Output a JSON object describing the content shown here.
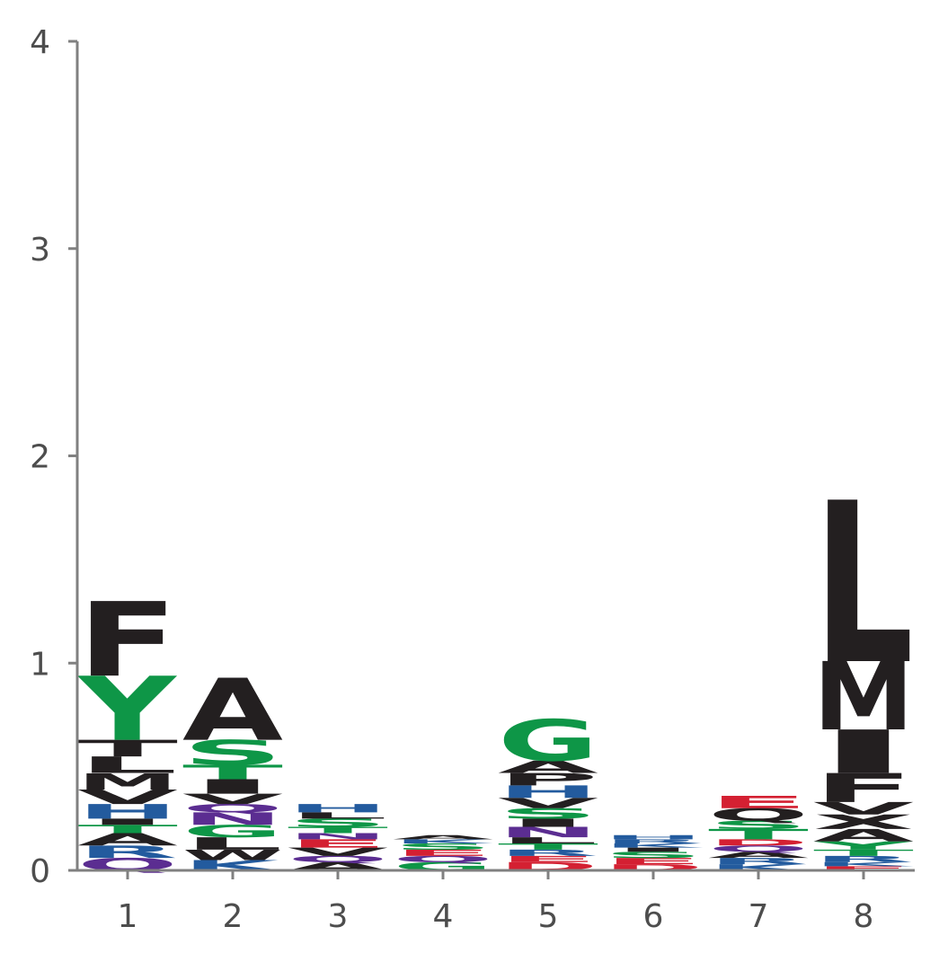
{
  "chart_data": {
    "type": "sequence-logo",
    "title": "",
    "xlabel": "",
    "ylabel": "",
    "ylim": [
      0,
      4
    ],
    "yticks": [
      0,
      1,
      2,
      3,
      4
    ],
    "colors": {
      "black": "#231f20",
      "green": "#0e9647",
      "blue": "#235b9e",
      "purple": "#5b2d91",
      "red": "#d42032"
    },
    "positions": [
      {
        "label": "1",
        "letters": [
          {
            "char": "Q",
            "height": 0.06,
            "color": "purple"
          },
          {
            "char": "R",
            "height": 0.06,
            "color": "blue"
          },
          {
            "char": "A",
            "height": 0.06,
            "color": "black"
          },
          {
            "char": "T",
            "height": 0.04,
            "color": "green"
          },
          {
            "char": "I",
            "height": 0.03,
            "color": "black"
          },
          {
            "char": "H",
            "height": 0.07,
            "color": "blue"
          },
          {
            "char": "V",
            "height": 0.07,
            "color": "black"
          },
          {
            "char": "M",
            "height": 0.08,
            "color": "black"
          },
          {
            "char": "L",
            "height": 0.08,
            "color": "black"
          },
          {
            "char": "T",
            "height": 0.08,
            "color": "black"
          },
          {
            "char": "Y",
            "height": 0.31,
            "color": "green"
          },
          {
            "char": "F",
            "height": 0.36,
            "color": "black"
          }
        ]
      },
      {
        "label": "2",
        "letters": [
          {
            "char": "K",
            "height": 0.05,
            "color": "blue"
          },
          {
            "char": "W",
            "height": 0.05,
            "color": "black"
          },
          {
            "char": "L",
            "height": 0.06,
            "color": "black"
          },
          {
            "char": "G",
            "height": 0.06,
            "color": "green"
          },
          {
            "char": "N",
            "height": 0.06,
            "color": "purple"
          },
          {
            "char": "Q",
            "height": 0.04,
            "color": "purple"
          },
          {
            "char": "V",
            "height": 0.05,
            "color": "black"
          },
          {
            "char": "I",
            "height": 0.07,
            "color": "black"
          },
          {
            "char": "T",
            "height": 0.07,
            "color": "green"
          },
          {
            "char": "S",
            "height": 0.12,
            "color": "green"
          },
          {
            "char": "A",
            "height": 0.3,
            "color": "black"
          }
        ]
      },
      {
        "label": "3",
        "letters": [
          {
            "char": "A",
            "height": 0.04,
            "color": "black"
          },
          {
            "char": "Q",
            "height": 0.03,
            "color": "purple"
          },
          {
            "char": "V",
            "height": 0.04,
            "color": "black"
          },
          {
            "char": "E",
            "height": 0.04,
            "color": "red"
          },
          {
            "char": "N",
            "height": 0.03,
            "color": "purple"
          },
          {
            "char": "T",
            "height": 0.03,
            "color": "green"
          },
          {
            "char": "S",
            "height": 0.04,
            "color": "green"
          },
          {
            "char": "L",
            "height": 0.03,
            "color": "black"
          },
          {
            "char": "H",
            "height": 0.04,
            "color": "blue"
          }
        ]
      },
      {
        "label": "4",
        "letters": [
          {
            "char": "G",
            "height": 0.04,
            "color": "green"
          },
          {
            "char": "Q",
            "height": 0.03,
            "color": "purple"
          },
          {
            "char": "E",
            "height": 0.03,
            "color": "red"
          },
          {
            "char": "S",
            "height": 0.03,
            "color": "green"
          },
          {
            "char": "K",
            "height": 0.02,
            "color": "blue"
          },
          {
            "char": "A",
            "height": 0.02,
            "color": "black"
          }
        ]
      },
      {
        "label": "5",
        "letters": [
          {
            "char": "D",
            "height": 0.04,
            "color": "red"
          },
          {
            "char": "E",
            "height": 0.03,
            "color": "red"
          },
          {
            "char": "R",
            "height": 0.03,
            "color": "blue"
          },
          {
            "char": "T",
            "height": 0.03,
            "color": "green"
          },
          {
            "char": "L",
            "height": 0.03,
            "color": "black"
          },
          {
            "char": "N",
            "height": 0.05,
            "color": "purple"
          },
          {
            "char": "I",
            "height": 0.04,
            "color": "black"
          },
          {
            "char": "S",
            "height": 0.05,
            "color": "green"
          },
          {
            "char": "V",
            "height": 0.05,
            "color": "black"
          },
          {
            "char": "H",
            "height": 0.06,
            "color": "blue"
          },
          {
            "char": "P",
            "height": 0.06,
            "color": "black"
          },
          {
            "char": "A",
            "height": 0.06,
            "color": "black"
          },
          {
            "char": "G",
            "height": 0.2,
            "color": "green"
          }
        ]
      },
      {
        "label": "6",
        "letters": [
          {
            "char": "D",
            "height": 0.03,
            "color": "red"
          },
          {
            "char": "E",
            "height": 0.03,
            "color": "red"
          },
          {
            "char": "S",
            "height": 0.03,
            "color": "green"
          },
          {
            "char": "I",
            "height": 0.02,
            "color": "black"
          },
          {
            "char": "K",
            "height": 0.02,
            "color": "blue"
          },
          {
            "char": "R",
            "height": 0.02,
            "color": "blue"
          },
          {
            "char": "H",
            "height": 0.02,
            "color": "blue"
          }
        ]
      },
      {
        "label": "7",
        "letters": [
          {
            "char": "K",
            "height": 0.03,
            "color": "blue"
          },
          {
            "char": "R",
            "height": 0.03,
            "color": "blue"
          },
          {
            "char": "A",
            "height": 0.03,
            "color": "black"
          },
          {
            "char": "Q",
            "height": 0.03,
            "color": "purple"
          },
          {
            "char": "D",
            "height": 0.03,
            "color": "red"
          },
          {
            "char": "T",
            "height": 0.05,
            "color": "green"
          },
          {
            "char": "S",
            "height": 0.04,
            "color": "green"
          },
          {
            "char": "Q",
            "height": 0.06,
            "color": "black"
          },
          {
            "char": "E",
            "height": 0.06,
            "color": "red"
          }
        ]
      },
      {
        "label": "8",
        "letters": [
          {
            "char": "E",
            "height": 0.02,
            "color": "red"
          },
          {
            "char": "K",
            "height": 0.02,
            "color": "blue"
          },
          {
            "char": "R",
            "height": 0.03,
            "color": "blue"
          },
          {
            "char": "T",
            "height": 0.03,
            "color": "green"
          },
          {
            "char": "Y",
            "height": 0.04,
            "color": "green"
          },
          {
            "char": "A",
            "height": 0.06,
            "color": "black"
          },
          {
            "char": "X",
            "height": 0.07,
            "color": "black"
          },
          {
            "char": "V",
            "height": 0.06,
            "color": "black"
          },
          {
            "char": "F",
            "height": 0.14,
            "color": "black"
          },
          {
            "char": "I",
            "height": 0.21,
            "color": "black"
          },
          {
            "char": "M",
            "height": 0.33,
            "color": "black"
          },
          {
            "char": "L",
            "height": 0.78,
            "color": "black"
          }
        ]
      }
    ]
  }
}
